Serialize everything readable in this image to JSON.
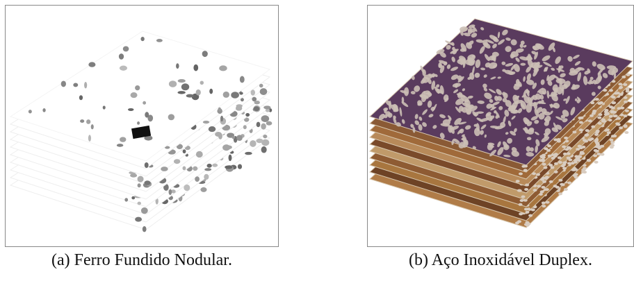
{
  "figures": [
    {
      "caption": "(a) Ferro Fundido Nodular."
    },
    {
      "caption": "(b) Aço Inoxidável Duplex."
    }
  ]
}
